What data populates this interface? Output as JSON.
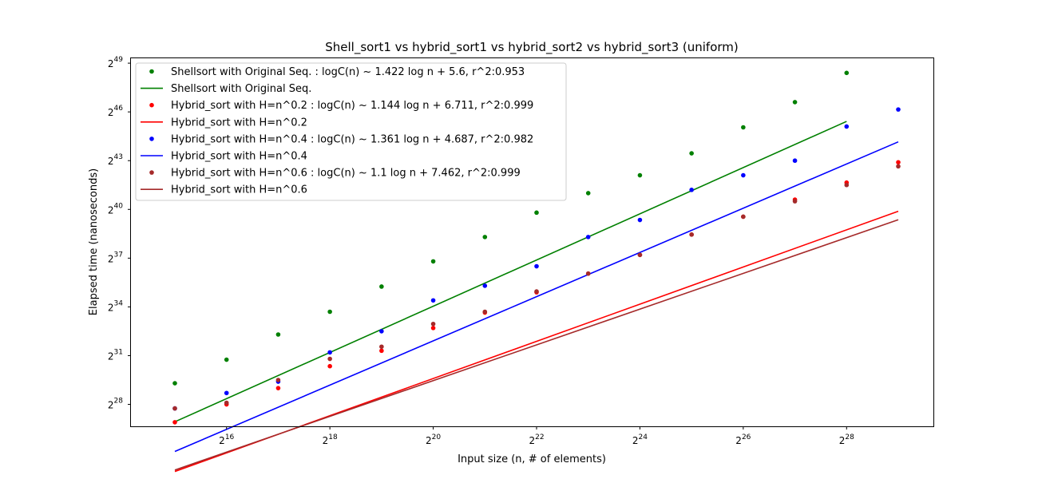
{
  "chart_data": {
    "type": "scatter",
    "title": "Shell_sort1 vs  hybrid_sort1 vs hybrid_sort2 vs hybrid_sort3  (uniform)",
    "xlabel": "Input size (n, # of elements)",
    "ylabel": "Elapsed time (nanoseconds)",
    "x_scale": "log2",
    "y_scale": "log2",
    "xlim_exp": [
      14.15,
      29.68
    ],
    "ylim_exp": [
      26.65,
      49.3
    ],
    "x_ticks": [
      {
        "base": "2",
        "exp": "16",
        "value": 16
      },
      {
        "base": "2",
        "exp": "18",
        "value": 18
      },
      {
        "base": "2",
        "exp": "20",
        "value": 20
      },
      {
        "base": "2",
        "exp": "22",
        "value": 22
      },
      {
        "base": "2",
        "exp": "24",
        "value": 24
      },
      {
        "base": "2",
        "exp": "26",
        "value": 26
      },
      {
        "base": "2",
        "exp": "28",
        "value": 28
      }
    ],
    "y_ticks": [
      {
        "base": "2",
        "exp": "28",
        "value": 28
      },
      {
        "base": "2",
        "exp": "31",
        "value": 31
      },
      {
        "base": "2",
        "exp": "34",
        "value": 34
      },
      {
        "base": "2",
        "exp": "37",
        "value": 37
      },
      {
        "base": "2",
        "exp": "40",
        "value": 40
      },
      {
        "base": "2",
        "exp": "43",
        "value": 43
      },
      {
        "base": "2",
        "exp": "46",
        "value": 46
      },
      {
        "base": "2",
        "exp": "49",
        "value": 49
      }
    ],
    "legend_position": "upper-left",
    "grid": false,
    "series": [
      {
        "key": "shellsort",
        "color": "#008000",
        "points_label": "Shellsort with Original Seq. : logC(n) ~ 1.422 log n  + 5.6, r^2:0.953",
        "line_label": "Shellsort with Original Seq.",
        "x": [
          15,
          16,
          17,
          18,
          19,
          20,
          21,
          22,
          23,
          24,
          25,
          26,
          27,
          28
        ],
        "y": [
          29.3,
          30.75,
          32.3,
          33.7,
          35.25,
          36.8,
          38.3,
          39.8,
          41.0,
          42.1,
          43.45,
          45.05,
          46.6,
          48.4
        ],
        "fit": {
          "slope": 1.422,
          "intercept": 5.6,
          "x_range": [
            15,
            28
          ]
        }
      },
      {
        "key": "hybrid_02",
        "color": "#ff0000",
        "points_label": "Hybrid_sort with H=n^0.2 : logC(n) ~ 1.144 log n  + 6.711, r^2:0.999",
        "line_label": "Hybrid_sort with H=n^0.2",
        "x": [
          15,
          16,
          17,
          18,
          19,
          20,
          21,
          22,
          23,
          24,
          25,
          26,
          27,
          28,
          29
        ],
        "y": [
          26.9,
          28.0,
          29.0,
          30.35,
          31.3,
          32.7,
          33.65,
          34.9,
          36.05,
          37.2,
          38.45,
          39.55,
          40.6,
          41.65,
          42.9
        ],
        "fit": {
          "slope": 1.144,
          "intercept": 6.711,
          "x_range": [
            15,
            29
          ]
        }
      },
      {
        "key": "hybrid_04",
        "color": "#0000ff",
        "points_label": "Hybrid_sort with H=n^0.4 : logC(n) ~ 1.361 log n  + 4.687, r^2:0.982",
        "line_label": "Hybrid_sort with H=n^0.4",
        "x": [
          15,
          16,
          17,
          18,
          19,
          20,
          21,
          22,
          23,
          24,
          25,
          26,
          27,
          28,
          29
        ],
        "y": [
          27.75,
          28.7,
          29.4,
          31.2,
          32.5,
          34.4,
          35.3,
          36.5,
          38.3,
          39.35,
          41.2,
          42.1,
          43.0,
          45.1,
          46.15
        ],
        "fit": {
          "slope": 1.361,
          "intercept": 4.687,
          "x_range": [
            15,
            29
          ]
        }
      },
      {
        "key": "hybrid_06",
        "color": "#a52a2a",
        "points_label": "Hybrid_sort with H=n^0.6 : logC(n) ~ 1.1 log n  + 7.462, r^2:0.999",
        "line_label": "Hybrid_sort with H=n^0.6",
        "x": [
          15,
          16,
          17,
          18,
          19,
          20,
          21,
          22,
          23,
          24,
          25,
          26,
          27,
          28,
          29
        ],
        "y": [
          27.75,
          28.1,
          29.5,
          30.8,
          31.55,
          32.95,
          33.7,
          34.95,
          36.05,
          37.2,
          38.45,
          39.55,
          40.5,
          41.5,
          42.65
        ],
        "fit": {
          "slope": 1.1,
          "intercept": 7.462,
          "x_range": [
            15,
            29
          ]
        }
      }
    ]
  }
}
